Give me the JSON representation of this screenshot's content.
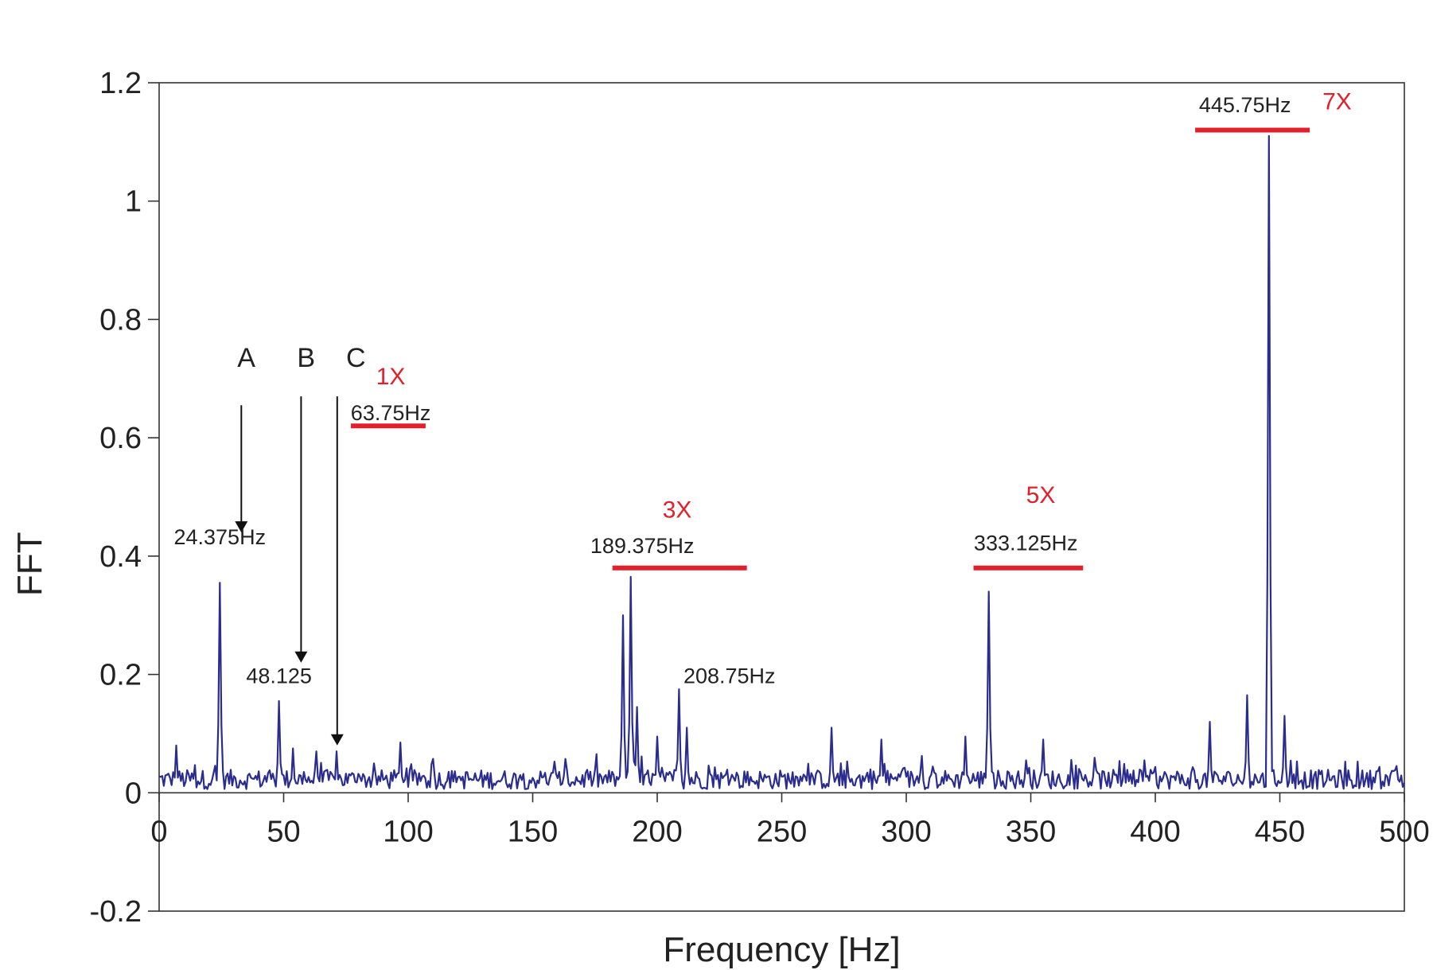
{
  "chart_data": {
    "type": "line",
    "xlabel": "Frequency [Hz]",
    "ylabel": "FFT",
    "xlim": [
      0,
      500
    ],
    "ylim": [
      -0.2,
      1.2
    ],
    "x_ticks": [
      "0",
      "50",
      "100",
      "150",
      "200",
      "250",
      "300",
      "350",
      "400",
      "450",
      "500"
    ],
    "y_ticks": [
      "-0.2",
      "0",
      "0.2",
      "0.4",
      "0.6",
      "0.8",
      "1",
      "1.2"
    ],
    "grid": false,
    "legend": "none",
    "series_color": "#2b2d8e",
    "highlight_color": "#e2202b",
    "noise_floor": [
      0,
      0.06
    ],
    "peaks": [
      {
        "x": 7,
        "y": 0.08
      },
      {
        "x": 24.375,
        "y": 0.355
      },
      {
        "x": 48.125,
        "y": 0.155
      },
      {
        "x": 54,
        "y": 0.075
      },
      {
        "x": 63,
        "y": 0.07
      },
      {
        "x": 71,
        "y": 0.07
      },
      {
        "x": 97,
        "y": 0.085
      },
      {
        "x": 186.5,
        "y": 0.3
      },
      {
        "x": 189.375,
        "y": 0.365
      },
      {
        "x": 192,
        "y": 0.145
      },
      {
        "x": 200,
        "y": 0.095
      },
      {
        "x": 208.75,
        "y": 0.175
      },
      {
        "x": 212,
        "y": 0.11
      },
      {
        "x": 270,
        "y": 0.11
      },
      {
        "x": 290,
        "y": 0.09
      },
      {
        "x": 324,
        "y": 0.095
      },
      {
        "x": 333.125,
        "y": 0.34
      },
      {
        "x": 355,
        "y": 0.09
      },
      {
        "x": 422,
        "y": 0.12
      },
      {
        "x": 437,
        "y": 0.165
      },
      {
        "x": 445.75,
        "y": 1.11
      },
      {
        "x": 452,
        "y": 0.13
      }
    ],
    "annotations": [
      {
        "text": "24.375Hz",
        "x": 24.375,
        "y": 0.42,
        "style": "black"
      },
      {
        "text": "48.125",
        "x": 48.125,
        "y": 0.185,
        "style": "black"
      },
      {
        "text": "63.75Hz",
        "x": 93,
        "y": 0.63,
        "style": "black"
      },
      {
        "text": "189.375Hz",
        "x": 194,
        "y": 0.405,
        "style": "black"
      },
      {
        "text": "208.75Hz",
        "x": 229,
        "y": 0.185,
        "style": "black"
      },
      {
        "text": "333.125Hz",
        "x": 348,
        "y": 0.41,
        "style": "black"
      },
      {
        "text": "445.75Hz",
        "x": 436,
        "y": 1.15,
        "style": "black"
      },
      {
        "text": "1X",
        "x": 93,
        "y": 0.69,
        "style": "red"
      },
      {
        "text": "3X",
        "x": 208,
        "y": 0.465,
        "style": "red"
      },
      {
        "text": "5X",
        "x": 354,
        "y": 0.49,
        "style": "red"
      },
      {
        "text": "7X",
        "x": 473,
        "y": 1.155,
        "style": "red"
      },
      {
        "text": "A",
        "x": 35,
        "y": 0.72,
        "style": "letter"
      },
      {
        "text": "B",
        "x": 59,
        "y": 0.72,
        "style": "letter"
      },
      {
        "text": "C",
        "x": 79,
        "y": 0.72,
        "style": "letter"
      }
    ],
    "arrows": [
      {
        "label": "A",
        "x": 33,
        "y_from": 0.655,
        "y_to": 0.44
      },
      {
        "label": "B",
        "x": 57,
        "y_from": 0.67,
        "y_to": 0.22
      },
      {
        "label": "C",
        "x": 71.5,
        "y_from": 0.67,
        "y_to": 0.08
      }
    ],
    "red_bars": [
      {
        "label": "1X",
        "x_from": 77,
        "x_to": 107,
        "y": 0.62
      },
      {
        "label": "3X",
        "x_from": 182,
        "x_to": 236,
        "y": 0.38
      },
      {
        "label": "5X",
        "x_from": 327,
        "x_to": 371,
        "y": 0.38
      },
      {
        "label": "7X",
        "x_from": 416,
        "x_to": 462,
        "y": 1.12
      }
    ]
  }
}
